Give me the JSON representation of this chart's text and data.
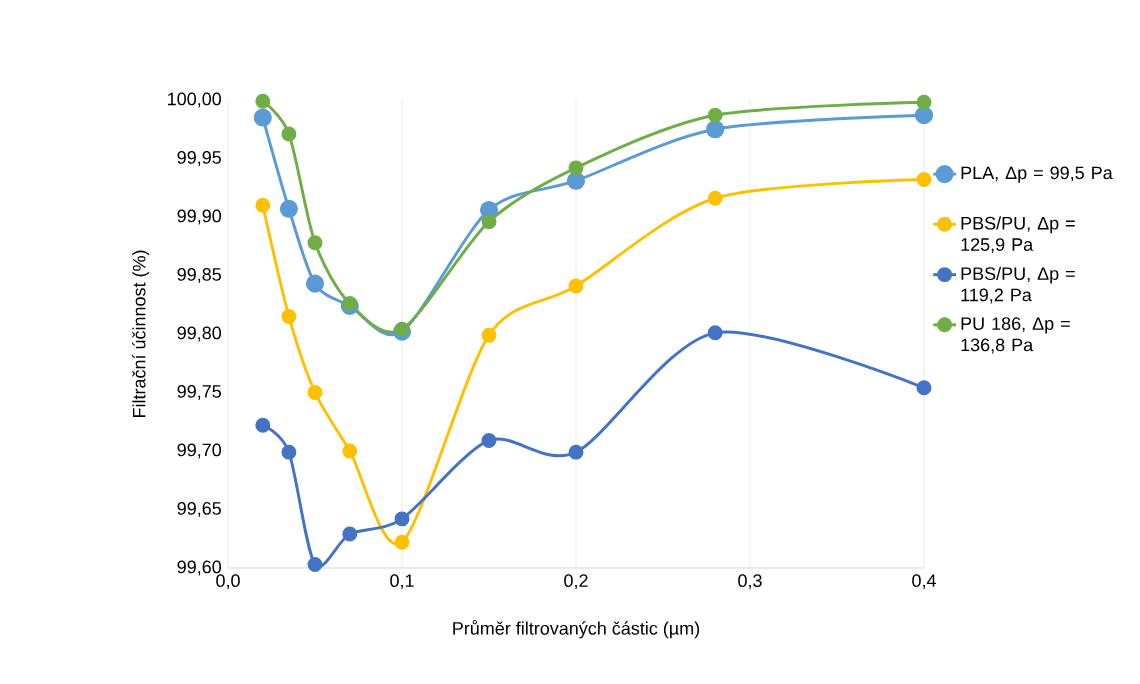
{
  "chart_data": {
    "type": "line",
    "xlabel": "Průměr filtrovaných částic (µm)",
    "ylabel": "Filtrační účinnost (%)",
    "x": [
      0.02,
      0.035,
      0.05,
      0.07,
      0.1,
      0.15,
      0.2,
      0.28,
      0.4
    ],
    "xlim": [
      0,
      0.4
    ],
    "ylim": [
      99.6,
      100.0
    ],
    "xticks": [
      {
        "value": 0,
        "label": "0,0"
      },
      {
        "value": 0.1,
        "label": "0,1"
      },
      {
        "value": 0.2,
        "label": "0,2"
      },
      {
        "value": 0.3,
        "label": "0,3"
      },
      {
        "value": 0.4,
        "label": "0,4"
      }
    ],
    "yticks": [
      {
        "value": 99.6,
        "label": "99,60"
      },
      {
        "value": 99.65,
        "label": "99,65"
      },
      {
        "value": 99.7,
        "label": "99,70"
      },
      {
        "value": 99.75,
        "label": "99,75"
      },
      {
        "value": 99.8,
        "label": "99,80"
      },
      {
        "value": 99.85,
        "label": "99,85"
      },
      {
        "value": 99.9,
        "label": "99,90"
      },
      {
        "value": 99.95,
        "label": "99,95"
      },
      {
        "value": 100.0,
        "label": "100,00"
      }
    ],
    "grid": "x",
    "legend": "right",
    "marker": "circle",
    "series": [
      {
        "name": "PLA, Δp = 99,5 Pa",
        "color": "#5b9bd5",
        "values": [
          99.985,
          99.907,
          99.843,
          99.824,
          99.802,
          99.906,
          99.931,
          99.975,
          99.987
        ]
      },
      {
        "name": "PBS/PU, Δp = 125,9 Pa",
        "color": "#ffc000",
        "values": [
          99.91,
          99.815,
          99.75,
          99.7,
          99.622,
          99.799,
          99.841,
          99.916,
          99.932
        ]
      },
      {
        "name": "PBS/PU, Δp = 119,2 Pa",
        "color": "#4472c4",
        "values": [
          99.722,
          99.699,
          99.603,
          99.629,
          99.642,
          99.709,
          99.699,
          99.801,
          99.754
        ]
      },
      {
        "name": "PU 186, Δp = 136,8 Pa",
        "color": "#70ad47",
        "values": [
          99.999,
          99.971,
          99.878,
          99.826,
          99.804,
          99.896,
          99.942,
          99.987,
          99.998
        ]
      }
    ]
  }
}
